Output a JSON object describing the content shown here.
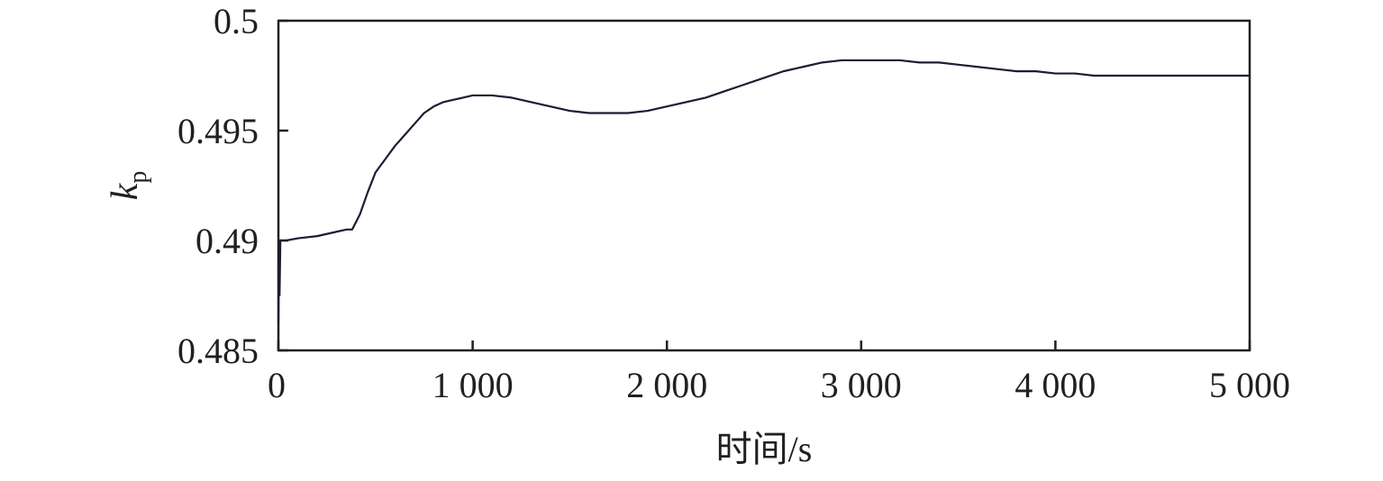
{
  "chart_data": {
    "type": "line",
    "title": "",
    "xlabel": "时间/s",
    "ylabel": {
      "main": "k",
      "sub": "p"
    },
    "xlim": [
      0,
      5000
    ],
    "ylim": [
      0.485,
      0.5
    ],
    "xticks": [
      0,
      1000,
      2000,
      3000,
      4000,
      5000
    ],
    "xtick_labels": [
      "0",
      "1 000",
      "2 000",
      "3 000",
      "4 000",
      "5 000"
    ],
    "yticks": [
      0.485,
      0.49,
      0.495,
      0.5
    ],
    "ytick_labels": [
      "0.485",
      "0.49",
      "0.495",
      "0.5"
    ],
    "grid": false,
    "line_color": "#1f1b33",
    "axis_color": "#231f20",
    "series": [
      {
        "x": [
          0,
          3,
          6,
          10,
          20,
          40,
          100,
          200,
          300,
          350,
          380,
          420,
          460,
          500,
          550,
          600,
          650,
          700,
          750,
          800,
          850,
          900,
          950,
          1000,
          1100,
          1200,
          1300,
          1400,
          1500,
          1600,
          1700,
          1800,
          1900,
          2000,
          2100,
          2200,
          2300,
          2400,
          2500,
          2600,
          2700,
          2800,
          2900,
          3000,
          3100,
          3200,
          3300,
          3400,
          3500,
          3600,
          3700,
          3800,
          3900,
          4000,
          4100,
          4200,
          4400,
          4600,
          4800,
          5000
        ],
        "y": [
          0.4862,
          0.4895,
          0.4875,
          0.49,
          0.49,
          0.49,
          0.4901,
          0.4902,
          0.4904,
          0.4905,
          0.4905,
          0.4912,
          0.4922,
          0.4931,
          0.4937,
          0.4943,
          0.4948,
          0.4953,
          0.4958,
          0.4961,
          0.4963,
          0.4964,
          0.4965,
          0.4966,
          0.4966,
          0.4965,
          0.4963,
          0.4961,
          0.4959,
          0.4958,
          0.4958,
          0.4958,
          0.4959,
          0.4961,
          0.4963,
          0.4965,
          0.4968,
          0.4971,
          0.4974,
          0.4977,
          0.4979,
          0.4981,
          0.4982,
          0.4982,
          0.4982,
          0.4982,
          0.4981,
          0.4981,
          0.498,
          0.4979,
          0.4978,
          0.4977,
          0.4977,
          0.4976,
          0.4976,
          0.4975,
          0.4975,
          0.4975,
          0.4975,
          0.4975
        ]
      }
    ]
  }
}
